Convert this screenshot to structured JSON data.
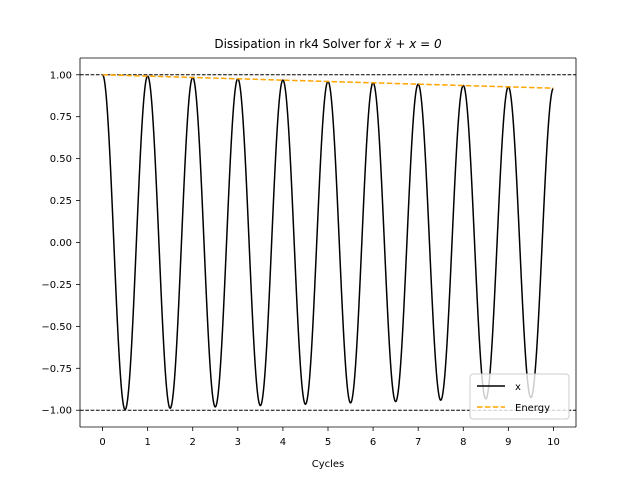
{
  "chart_data": {
    "type": "line",
    "title_prefix": "Dissipation in rk4 Solver for ",
    "title_math": "ẍ + x = 0",
    "xlabel": "Cycles",
    "ylabel": "",
    "xlim": [
      -0.5,
      10.5
    ],
    "ylim": [
      -1.1,
      1.1
    ],
    "xticks": [
      0,
      1,
      2,
      3,
      4,
      5,
      6,
      7,
      8,
      9,
      10
    ],
    "xtick_labels": [
      "0",
      "1",
      "2",
      "3",
      "4",
      "5",
      "6",
      "7",
      "8",
      "9",
      "10"
    ],
    "yticks": [
      1.0,
      0.75,
      0.5,
      0.25,
      0.0,
      -0.25,
      -0.5,
      -0.75,
      -1.0
    ],
    "ytick_labels": [
      "1.00",
      "0.75",
      "0.50",
      "0.25",
      "0.00",
      "−0.25",
      "−0.50",
      "−0.75",
      "−1.00"
    ],
    "reference_lines": [
      1.0,
      -1.0
    ],
    "series": [
      {
        "name": "x",
        "color": "#000000",
        "style": "solid",
        "function": "amplitude(t) * cos(2*pi*t)",
        "x_range": [
          0,
          10
        ],
        "amplitude_start": 1.0,
        "amplitude_end": 0.92
      },
      {
        "name": "Energy",
        "color": "#ffa500",
        "style": "dashed",
        "x_range": [
          0,
          10
        ],
        "y_start": 1.0,
        "y_end": 0.92
      }
    ],
    "legend": {
      "placement": "lower-right"
    }
  }
}
